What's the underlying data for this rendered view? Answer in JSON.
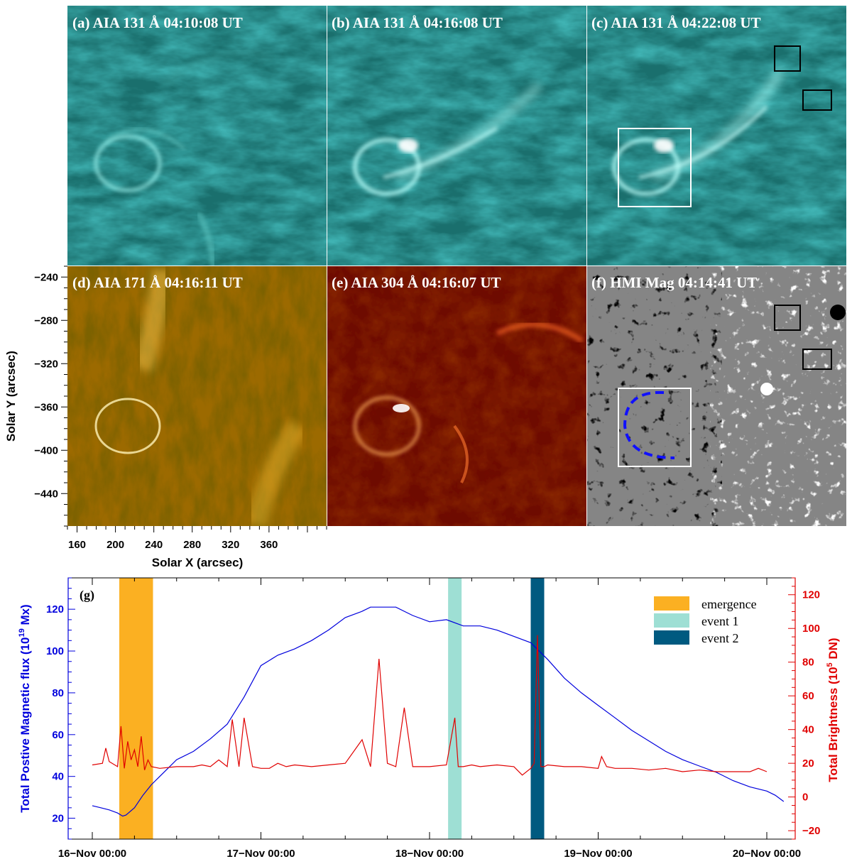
{
  "panels": [
    {
      "id": "a",
      "title": "(a) AIA 131 Å  04:10:08 UT",
      "kind": "aia131"
    },
    {
      "id": "b",
      "title": "(b) AIA 131 Å  04:16:08 UT",
      "kind": "aia131"
    },
    {
      "id": "c",
      "title": "(c) AIA 131 Å  04:22:08 UT",
      "kind": "aia131"
    },
    {
      "id": "d",
      "title": "(d) AIA 171 Å  04:16:11 UT",
      "kind": "aia171"
    },
    {
      "id": "e",
      "title": "(e) AIA 304 Å  04:16:07 UT",
      "kind": "aia304"
    },
    {
      "id": "f",
      "title": "(f) HMI Mag   04:14:41 UT",
      "kind": "hmi"
    }
  ],
  "image_axes": {
    "xlabel": "Solar X (arcsec)",
    "ylabel": "Solar Y (arcsec)",
    "x_range": [
      150,
      420
    ],
    "y_range": [
      -470,
      -230
    ],
    "x_ticks": [
      "160",
      "200",
      "240",
      "280",
      "320",
      "360"
    ],
    "x_tick_values": [
      160,
      200,
      240,
      280,
      320,
      360
    ],
    "y_ticks": [
      "−240",
      "−280",
      "−320",
      "−360",
      "−400",
      "−440"
    ],
    "y_tick_values": [
      -240,
      -280,
      -320,
      -360,
      -400,
      -440
    ]
  },
  "colors": {
    "aia131": "#27b9b6",
    "aia171": "#d79a0c",
    "aia304": "#b31100",
    "hmi": "#8a8a8a",
    "flux_line": "#0000dd",
    "brightness_line": "#e00000",
    "emergence": "#fbb022",
    "event1": "#9edfd4",
    "event2": "#005a80"
  },
  "chart_data": {
    "type": "line",
    "panel_label": "(g)",
    "x_unit": "days since 16-Nov 00:00",
    "x_range": [
      0,
      4
    ],
    "x_ticks": [
      0,
      1,
      2,
      3,
      4
    ],
    "x_tick_labels": [
      "16−Nov 00:00",
      "17−Nov 00:00",
      "18−Nov 00:00",
      "19−Nov 00:00",
      "20−Nov 00:00"
    ],
    "ylabel_left": "Total Postive Magnetic flux (10",
    "ylabel_left_exp": "19",
    "ylabel_left_unit": " Mx)",
    "ylim_left": [
      10,
      135
    ],
    "yticks_left": [
      20,
      40,
      60,
      80,
      100,
      120
    ],
    "ylabel_right": "Total Brightness (10",
    "ylabel_right_exp": "5",
    "ylabel_right_unit": " DN)",
    "ylim_right": [
      -25,
      130
    ],
    "yticks_right": [
      -20,
      0,
      20,
      40,
      60,
      80,
      100,
      120
    ],
    "shaded": [
      {
        "name": "emergence",
        "x0": 0.16,
        "x1": 0.36,
        "color": "#fbb022"
      },
      {
        "name": "event 1",
        "x0": 2.11,
        "x1": 2.19,
        "color": "#9edfd4"
      },
      {
        "name": "event 2",
        "x0": 2.6,
        "x1": 2.68,
        "color": "#005a80"
      }
    ],
    "series": [
      {
        "name": "Total positive magnetic flux",
        "axis": "left",
        "color": "#0000dd",
        "x": [
          0,
          0.05,
          0.1,
          0.15,
          0.18,
          0.2,
          0.25,
          0.3,
          0.35,
          0.4,
          0.45,
          0.5,
          0.6,
          0.7,
          0.8,
          0.9,
          1.0,
          1.1,
          1.2,
          1.3,
          1.4,
          1.5,
          1.6,
          1.65,
          1.7,
          1.8,
          1.9,
          2.0,
          2.1,
          2.2,
          2.3,
          2.4,
          2.5,
          2.6,
          2.7,
          2.8,
          2.9,
          3.0,
          3.1,
          3.2,
          3.3,
          3.4,
          3.5,
          3.6,
          3.7,
          3.8,
          3.9,
          4.0,
          4.05,
          4.1
        ],
        "y": [
          26,
          25,
          24,
          22.5,
          21,
          21.5,
          25,
          31,
          36,
          40,
          44,
          48,
          52,
          58,
          65,
          78,
          93,
          98,
          101,
          105,
          110,
          116,
          119,
          121,
          121,
          121,
          117,
          114,
          115,
          112,
          112,
          110,
          107,
          104,
          96,
          87,
          80,
          74,
          68,
          62,
          57,
          52,
          48,
          45,
          42,
          38,
          35,
          33,
          31,
          28
        ]
      },
      {
        "name": "Total brightness",
        "axis": "right",
        "color": "#e00000",
        "x": [
          0,
          0.06,
          0.08,
          0.1,
          0.15,
          0.17,
          0.19,
          0.21,
          0.23,
          0.25,
          0.27,
          0.29,
          0.31,
          0.33,
          0.35,
          0.4,
          0.5,
          0.6,
          0.65,
          0.7,
          0.75,
          0.8,
          0.83,
          0.87,
          0.9,
          0.95,
          1.0,
          1.05,
          1.1,
          1.15,
          1.2,
          1.3,
          1.4,
          1.5,
          1.6,
          1.65,
          1.7,
          1.75,
          1.8,
          1.85,
          1.9,
          2.0,
          2.1,
          2.15,
          2.17,
          2.2,
          2.25,
          2.3,
          2.4,
          2.5,
          2.55,
          2.6,
          2.62,
          2.64,
          2.66,
          2.68,
          2.7,
          2.8,
          2.9,
          3.0,
          3.02,
          3.05,
          3.1,
          3.2,
          3.3,
          3.4,
          3.5,
          3.6,
          3.7,
          3.8,
          3.9,
          3.95,
          4.0
        ],
        "y": [
          19,
          20,
          29,
          21,
          18,
          42,
          17,
          33,
          22,
          28,
          18,
          36,
          16,
          22,
          18,
          17,
          18,
          18,
          19,
          18,
          22,
          18,
          46,
          18,
          47,
          18,
          17,
          17,
          20,
          18,
          19,
          18,
          19,
          20,
          34,
          18,
          82,
          20,
          18,
          53,
          18,
          18,
          19,
          47,
          18,
          18,
          19,
          18,
          19,
          18,
          13,
          17,
          20,
          96,
          18,
          18,
          19,
          18,
          18,
          17,
          24,
          18,
          17,
          17,
          16,
          17,
          15,
          16,
          15,
          15,
          15,
          17,
          15
        ]
      }
    ],
    "legend": {
      "placement": "top-right",
      "items": [
        "emergence",
        "event 1",
        "event 2"
      ]
    }
  }
}
